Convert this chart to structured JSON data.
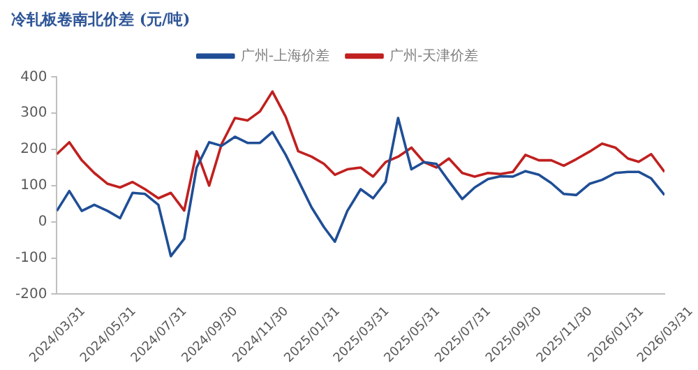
{
  "chart_data": {
    "type": "line",
    "title": "冷轧板卷南北价差 (元/吨)",
    "x": [
      "2024-03-31",
      "2024-04-15",
      "2024-04-30",
      "2024-05-15",
      "2024-05-31",
      "2024-06-15",
      "2024-06-30",
      "2024-07-15",
      "2024-07-31",
      "2024-08-15",
      "2024-08-31",
      "2024-09-15",
      "2024-09-30",
      "2024-10-15",
      "2024-10-31",
      "2024-11-15",
      "2024-11-30",
      "2024-12-15",
      "2024-12-31",
      "2025-01-15",
      "2025-01-31",
      "2025-02-15",
      "2025-02-28",
      "2025-03-15",
      "2025-03-31",
      "2025-04-15",
      "2025-04-30",
      "2025-05-15",
      "2025-05-31",
      "2025-06-15",
      "2025-06-30",
      "2025-07-15",
      "2025-07-31",
      "2025-08-15",
      "2025-08-31",
      "2025-09-15",
      "2025-09-30",
      "2025-10-15",
      "2025-10-31",
      "2025-11-15",
      "2025-11-30",
      "2025-12-15",
      "2025-12-31",
      "2026-01-15",
      "2026-01-31",
      "2026-02-15",
      "2026-02-28",
      "2026-03-15",
      "2026-03-31"
    ],
    "series": [
      {
        "name": "广州-上海价差",
        "color": "#1f4e96",
        "values": [
          30,
          85,
          30,
          47,
          30,
          10,
          80,
          77,
          47,
          -95,
          -47,
          150,
          220,
          210,
          235,
          218,
          218,
          248,
          185,
          115,
          40,
          -15,
          -55,
          30,
          90,
          65,
          110,
          287,
          145,
          165,
          160,
          112,
          63,
          95,
          118,
          126,
          125,
          140,
          130,
          107,
          77,
          74,
          105,
          116,
          135,
          138,
          138,
          120,
          74
        ]
      },
      {
        "name": "广州-天津价差",
        "color": "#c0201f",
        "values": [
          187,
          220,
          170,
          135,
          105,
          95,
          110,
          90,
          65,
          80,
          31,
          195,
          100,
          215,
          287,
          280,
          305,
          360,
          290,
          195,
          180,
          160,
          130,
          145,
          150,
          125,
          165,
          180,
          205,
          165,
          150,
          175,
          135,
          125,
          135,
          132,
          138,
          185,
          170,
          170,
          155,
          173,
          194,
          216,
          205,
          175,
          166,
          187,
          138
        ]
      }
    ],
    "xlim": [
      "2024-03-31",
      "2026-03-31"
    ],
    "xticks": [
      {
        "value": "2024-03-31",
        "label": "2024/03/31"
      },
      {
        "value": "2024-05-31",
        "label": "2024/05/31"
      },
      {
        "value": "2024-07-31",
        "label": "2024/07/31"
      },
      {
        "value": "2024-09-30",
        "label": "2024/09/30"
      },
      {
        "value": "2024-11-30",
        "label": "2024/11/30"
      },
      {
        "value": "2025-01-31",
        "label": "2025/01/31"
      },
      {
        "value": "2025-03-31",
        "label": "2025/03/31"
      },
      {
        "value": "2025-05-31",
        "label": "2025/05/31"
      },
      {
        "value": "2025-07-31",
        "label": "2025/07/31"
      },
      {
        "value": "2025-09-30",
        "label": "2025/09/30"
      },
      {
        "value": "2025-11-30",
        "label": "2025/11/30"
      },
      {
        "value": "2026-01-31",
        "label": "2026/01/31"
      },
      {
        "value": "2026-03-31",
        "label": "2026/03/31"
      }
    ],
    "ylim": [
      -200,
      400
    ],
    "yticks": [
      -200,
      -100,
      0,
      100,
      200,
      300,
      400
    ],
    "grid": false,
    "legend": "top",
    "marker": "none",
    "line_style": "solid"
  }
}
